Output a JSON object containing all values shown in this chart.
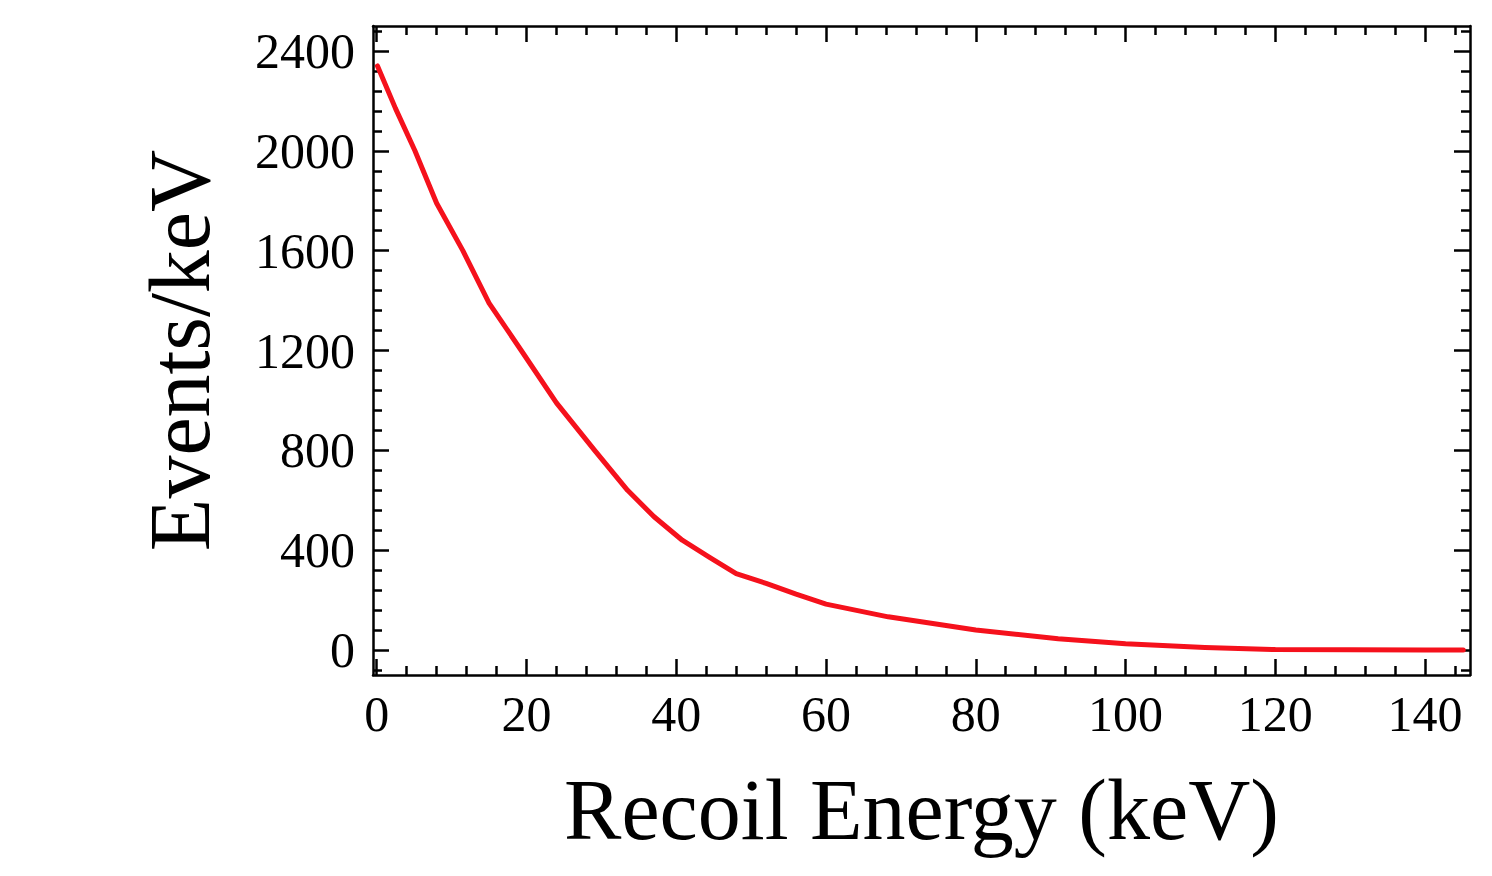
{
  "chart_data": {
    "type": "line",
    "xlabel": "Recoil Energy (keV)",
    "ylabel": "Events/keV",
    "series": [
      {
        "color": "#f5111c",
        "x": [
          0.1,
          2.5,
          5.1,
          8,
          11.5,
          15,
          19.3,
          24,
          29.1,
          33.5,
          37,
          40.8,
          44.5,
          48,
          52,
          56,
          60,
          68.3,
          80,
          91,
          100,
          110.6,
          120,
          130,
          140,
          145.1
        ],
        "values": [
          2340,
          2170,
          2000,
          1790,
          1600,
          1390,
          1200,
          990,
          800,
          640,
          535,
          440,
          370,
          306,
          267,
          224,
          184,
          133,
          80,
          45,
          25,
          10,
          2,
          1,
          0,
          0
        ]
      }
    ],
    "xlim": [
      -0.5,
      146
    ],
    "xticks": [
      0,
      {
        "value": 4,
        "label": null
      },
      {
        "value": 8,
        "label": null
      },
      {
        "value": 12,
        "label": null
      },
      {
        "value": 16,
        "label": null
      },
      20,
      {
        "value": 24,
        "label": null
      },
      {
        "value": 28,
        "label": null
      },
      {
        "value": 32,
        "label": null
      },
      {
        "value": 36,
        "label": null
      },
      40,
      {
        "value": 44,
        "label": null
      },
      {
        "value": 48,
        "label": null
      },
      {
        "value": 52,
        "label": null
      },
      {
        "value": 56,
        "label": null
      },
      60,
      {
        "value": 64,
        "label": null
      },
      {
        "value": 68,
        "label": null
      },
      {
        "value": 72,
        "label": null
      },
      {
        "value": 76,
        "label": null
      },
      80,
      {
        "value": 84,
        "label": null
      },
      {
        "value": 88,
        "label": null
      },
      {
        "value": 92,
        "label": null
      },
      {
        "value": 96,
        "label": null
      },
      100,
      {
        "value": 104,
        "label": null
      },
      {
        "value": 108,
        "label": null
      },
      {
        "value": 112,
        "label": null
      },
      {
        "value": 116,
        "label": null
      },
      120,
      {
        "value": 124,
        "label": null
      },
      {
        "value": 128,
        "label": null
      },
      {
        "value": 132,
        "label": null
      },
      {
        "value": 136,
        "label": null
      },
      140,
      {
        "value": 144,
        "label": null
      }
    ],
    "ylim": [
      -100,
      2500
    ],
    "yticks": [
      {
        "value": -80,
        "label": null
      },
      0,
      {
        "value": 80,
        "label": null
      },
      {
        "value": 160,
        "label": null
      },
      {
        "value": 240,
        "label": null
      },
      {
        "value": 320,
        "label": null
      },
      400,
      {
        "value": 480,
        "label": null
      },
      {
        "value": 560,
        "label": null
      },
      {
        "value": 640,
        "label": null
      },
      {
        "value": 720,
        "label": null
      },
      800,
      {
        "value": 880,
        "label": null
      },
      {
        "value": 960,
        "label": null
      },
      {
        "value": 1040,
        "label": null
      },
      {
        "value": 1120,
        "label": null
      },
      1200,
      {
        "value": 1280,
        "label": null
      },
      {
        "value": 1360,
        "label": null
      },
      {
        "value": 1440,
        "label": null
      },
      {
        "value": 1520,
        "label": null
      },
      1600,
      {
        "value": 1680,
        "label": null
      },
      {
        "value": 1760,
        "label": null
      },
      {
        "value": 1840,
        "label": null
      },
      {
        "value": 1920,
        "label": null
      },
      2000,
      {
        "value": 2080,
        "label": null
      },
      {
        "value": 2160,
        "label": null
      },
      {
        "value": 2240,
        "label": null
      },
      {
        "value": 2320,
        "label": null
      },
      2400,
      {
        "value": 2480,
        "label": null
      }
    ],
    "grid": false,
    "marker": "none",
    "line_style": "solid"
  }
}
